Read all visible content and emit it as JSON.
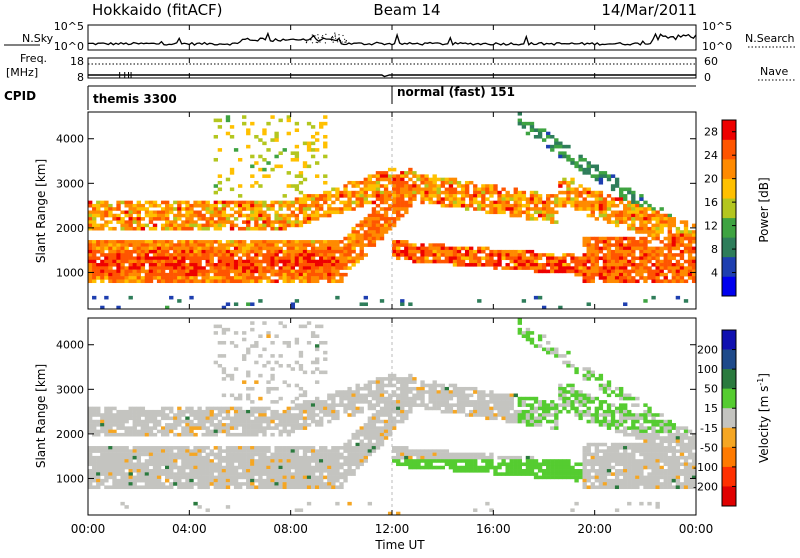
{
  "header": {
    "station": "Hokkaido (fitACF)",
    "beam": "Beam 14",
    "date": "14/Mar/2011"
  },
  "chart_data": [
    {
      "type": "line",
      "name": "noise-panel",
      "left_label": "N.Sky",
      "right_label": "N.Search",
      "left_ticks": [
        "10^5",
        "10^0"
      ],
      "right_ticks": [
        "10^5",
        "10^0"
      ]
    },
    {
      "type": "line",
      "name": "frequency-panel",
      "left_label_lines": [
        "Freq.",
        "[MHz]"
      ],
      "left_ticks": [
        18,
        8
      ],
      "right_label": "Nave",
      "right_ticks": [
        60,
        0
      ]
    },
    {
      "type": "table",
      "name": "cpid-strip",
      "label": "CPID",
      "programs": [
        {
          "label": "themis 3300",
          "start_hour": 0
        },
        {
          "label": "normal (fast) 151",
          "start_hour": 12
        }
      ]
    },
    {
      "type": "heatmap",
      "name": "power-panel",
      "ylabel": "Slant Range [km]",
      "yticks": [
        1000,
        2000,
        3000,
        4000
      ],
      "ylim": [
        180,
        4600
      ],
      "xlim": [
        0,
        24
      ],
      "colorbar": {
        "label": "Power [dB]",
        "ticks": [
          4,
          8,
          12,
          16,
          20,
          24,
          28
        ],
        "range": [
          0,
          30
        ]
      }
    },
    {
      "type": "heatmap",
      "name": "velocity-panel",
      "ylabel": "Slant Range [km]",
      "yticks": [
        1000,
        2000,
        3000,
        4000
      ],
      "ylim": [
        180,
        4600
      ],
      "xlim": [
        0,
        24
      ],
      "colorbar": {
        "label": "Velocity [m s^-1]",
        "ticks": [
          200,
          100,
          50,
          15,
          -15,
          -50,
          -100,
          -200
        ]
      }
    }
  ],
  "x_axis": {
    "ticks": [
      "00:00",
      "04:00",
      "08:00",
      "12:00",
      "16:00",
      "20:00",
      "00:00"
    ],
    "tick_hours": [
      0,
      4,
      8,
      12,
      16,
      20,
      24
    ],
    "label": "Time UT"
  },
  "colors": {
    "power_scale": [
      "#0000ee",
      "#1e3fb0",
      "#2e7d5a",
      "#3ea341",
      "#b3c61f",
      "#ffc000",
      "#ff8a00",
      "#ff5500",
      "#ee0000"
    ],
    "velocity_scale": [
      "#1010b0",
      "#1e4a8a",
      "#2a7a3e",
      "#55cc30",
      "#c4c4c0",
      "#f5a623",
      "#ff7a00",
      "#ff3000",
      "#e00000"
    ]
  }
}
